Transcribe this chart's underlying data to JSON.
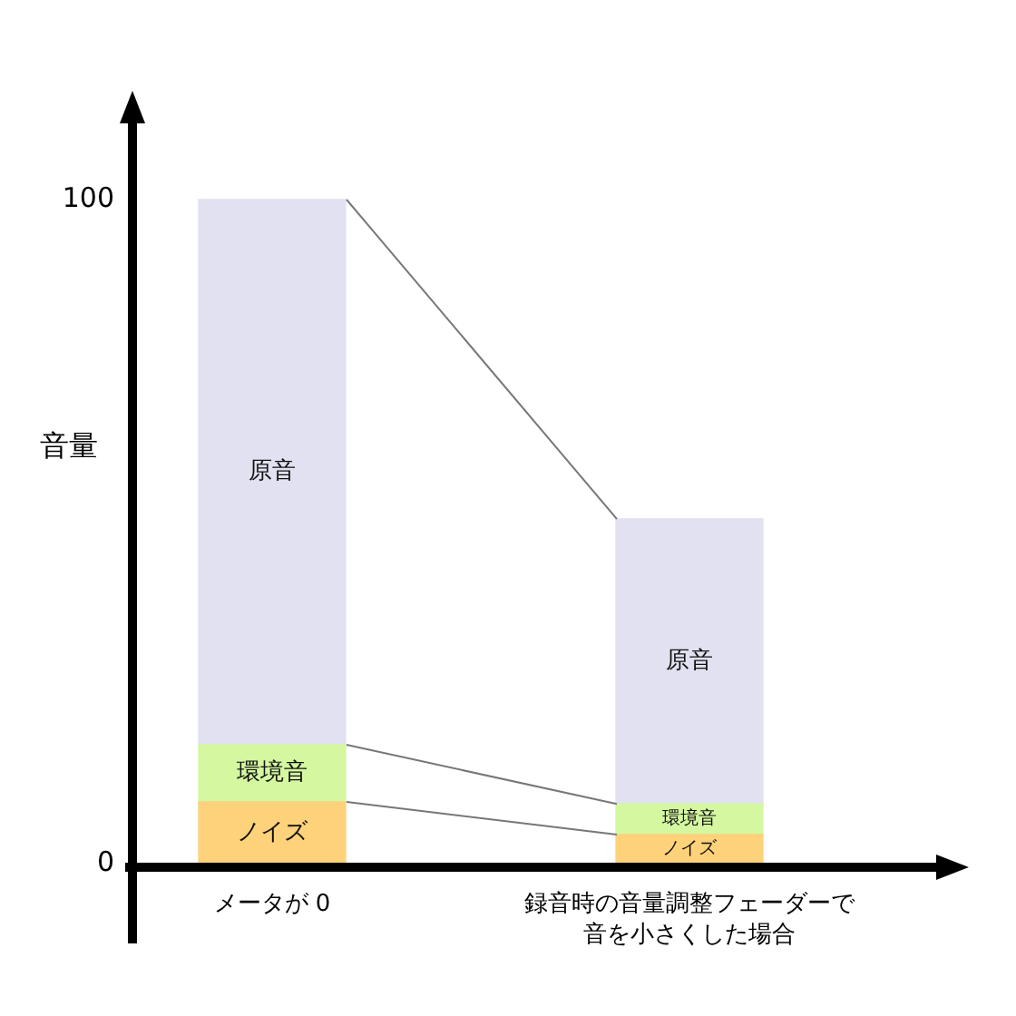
{
  "chart_data": {
    "type": "bar",
    "stacked": true,
    "ylabel": "音量",
    "categories": [
      "メータが 0",
      "録音時の音量調整フェーダーで音を小さくした場合"
    ],
    "series": [
      {
        "name": "ノイズ",
        "color": "#fdd27a",
        "values": [
          9.3,
          4.4
        ]
      },
      {
        "name": "環境音",
        "color": "#d4f7a0",
        "values": [
          8.6,
          4.6
        ]
      },
      {
        "name": "原音",
        "color": "#e1e1f1",
        "values": [
          82.1,
          42.9
        ]
      }
    ],
    "ylim": [
      0,
      112
    ],
    "yticks": [
      0,
      100
    ],
    "legend": false
  }
}
